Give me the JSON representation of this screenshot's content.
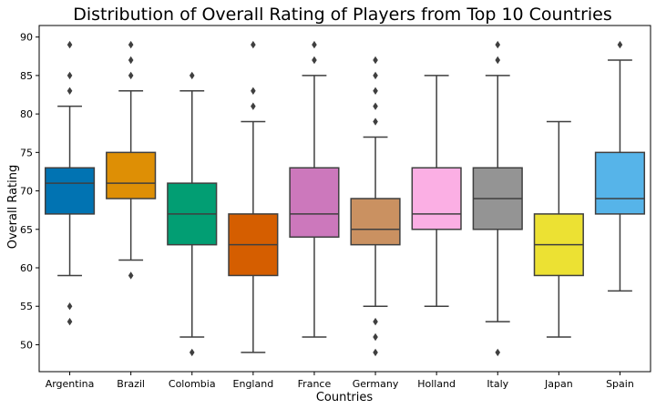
{
  "chart_data": {
    "type": "box",
    "title": "Distribution of Overall Rating of Players from Top 10 Countries",
    "xlabel": "Countries",
    "ylabel": "Overall Rating",
    "ylim": [
      46.5,
      91.5
    ],
    "yticks": [
      50,
      55,
      60,
      65,
      70,
      75,
      80,
      85,
      90
    ],
    "grid": false,
    "legend": "none",
    "categories": [
      "Argentina",
      "Brazil",
      "Colombia",
      "England",
      "France",
      "Germany",
      "Holland",
      "Italy",
      "Japan",
      "Spain"
    ],
    "series": [
      {
        "category": "Argentina",
        "color": "#0173b2",
        "whisker_low": 59,
        "q1": 67,
        "median": 71,
        "q3": 73,
        "whisker_high": 81,
        "outliers": [
          83,
          85,
          89,
          55,
          53
        ]
      },
      {
        "category": "Brazil",
        "color": "#de8f05",
        "whisker_low": 61,
        "q1": 69,
        "median": 71,
        "q3": 75,
        "whisker_high": 83,
        "outliers": [
          85,
          87,
          89,
          59
        ]
      },
      {
        "category": "Colombia",
        "color": "#029e73",
        "whisker_low": 51,
        "q1": 63,
        "median": 67,
        "q3": 71,
        "whisker_high": 83,
        "outliers": [
          85,
          49
        ]
      },
      {
        "category": "England",
        "color": "#d55e00",
        "whisker_low": 49,
        "q1": 59,
        "median": 63,
        "q3": 67,
        "whisker_high": 79,
        "outliers": [
          81,
          83,
          89
        ]
      },
      {
        "category": "France",
        "color": "#cc78bc",
        "whisker_low": 51,
        "q1": 64,
        "median": 67,
        "q3": 73,
        "whisker_high": 85,
        "outliers": [
          87,
          89
        ]
      },
      {
        "category": "Germany",
        "color": "#ca9161",
        "whisker_low": 55,
        "q1": 63,
        "median": 65,
        "q3": 69,
        "whisker_high": 77,
        "outliers": [
          79,
          81,
          83,
          85,
          87,
          53,
          51,
          49
        ]
      },
      {
        "category": "Holland",
        "color": "#fbafe4",
        "whisker_low": 55,
        "q1": 65,
        "median": 67,
        "q3": 73,
        "whisker_high": 85,
        "outliers": []
      },
      {
        "category": "Italy",
        "color": "#949494",
        "whisker_low": 53,
        "q1": 65,
        "median": 69,
        "q3": 73,
        "whisker_high": 85,
        "outliers": [
          87,
          89,
          49
        ]
      },
      {
        "category": "Japan",
        "color": "#ece133",
        "whisker_low": 51,
        "q1": 59,
        "median": 63,
        "q3": 67,
        "whisker_high": 79,
        "outliers": []
      },
      {
        "category": "Spain",
        "color": "#56b4e9",
        "whisker_low": 57,
        "q1": 67,
        "median": 69,
        "q3": 75,
        "whisker_high": 87,
        "outliers": [
          89
        ]
      }
    ]
  }
}
